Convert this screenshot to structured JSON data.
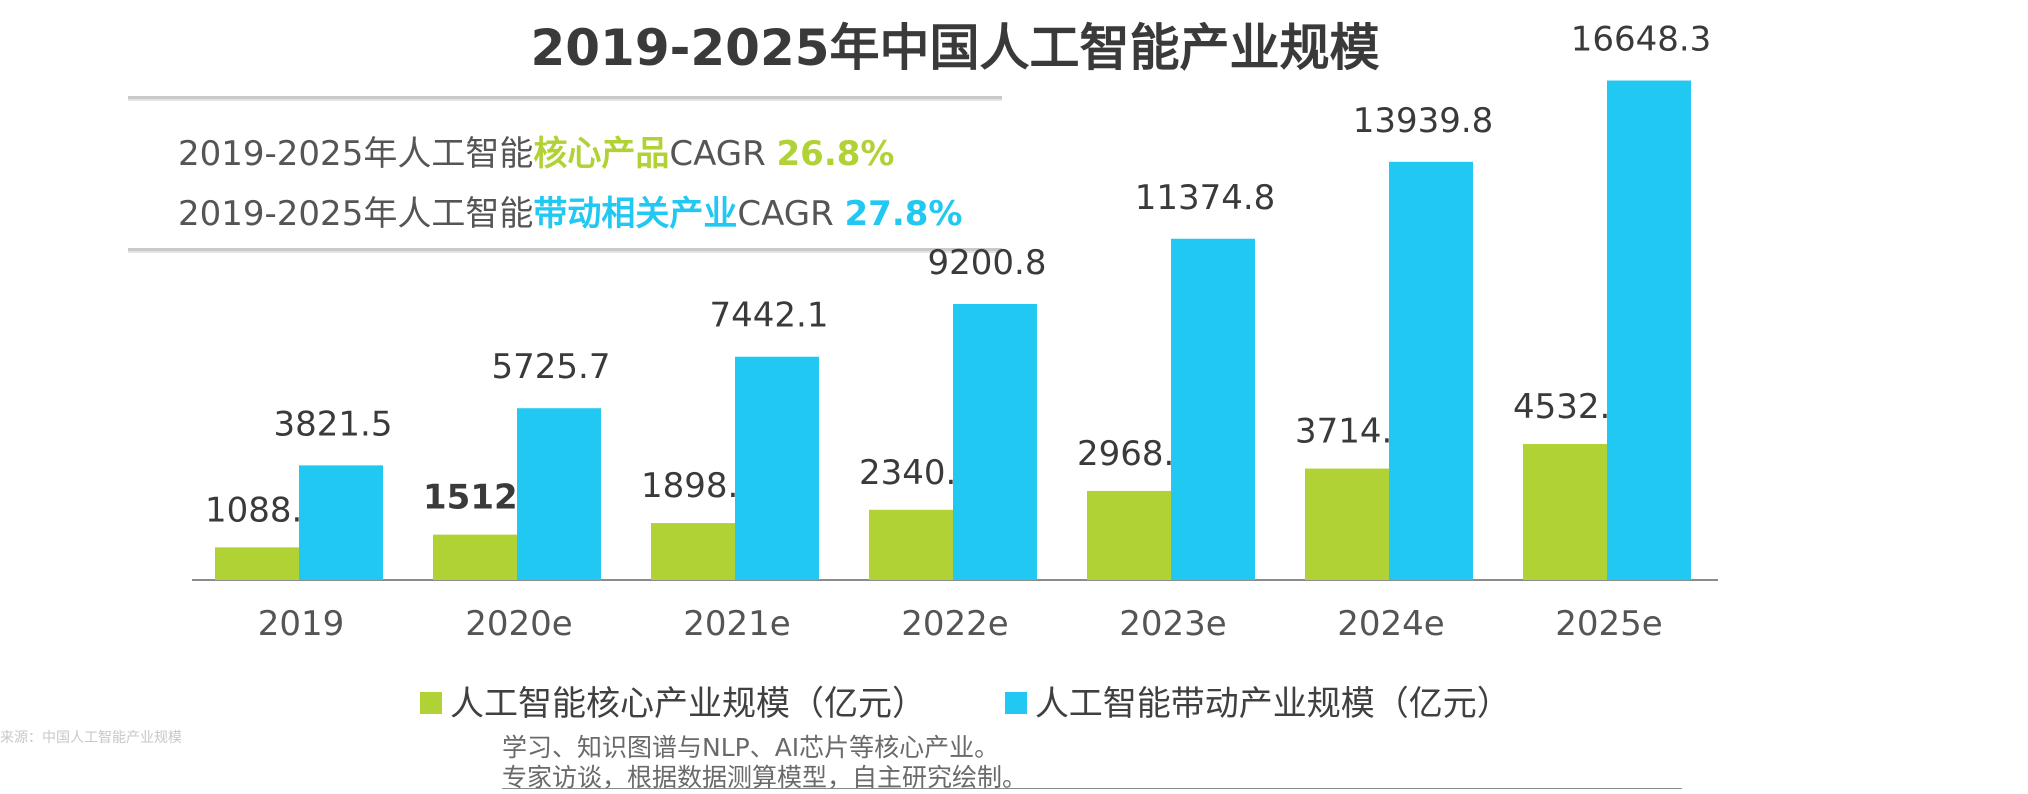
{
  "title": "2019-2025年中国人工智能产业规模",
  "cagr": {
    "line1_prefix": "2019-2025年人工智能",
    "line1_highlight": "核心产品",
    "line1_suffix": "CAGR ",
    "line1_value": "26.8%",
    "line2_prefix": "2019-2025年人工智能",
    "line2_highlight": "带动相关产业",
    "line2_suffix": "CAGR ",
    "line2_value": "27.8%"
  },
  "colors": {
    "green": "#b1d235",
    "cyan": "#21c8f1",
    "axis": "#8c8c8c",
    "label": "#3a3a3a"
  },
  "chart_data": {
    "type": "bar",
    "categories": [
      "2019",
      "2020e",
      "2021e",
      "2022e",
      "2023e",
      "2024e",
      "2025e"
    ],
    "series": [
      {
        "name": "人工智能核心产业规模（亿元）",
        "values": [
          1088.6,
          1512.5,
          1898.1,
          2340.4,
          2968.9,
          3714.6,
          4532.6
        ]
      },
      {
        "name": "人工智能带动产业规模（亿元）",
        "values": [
          3821.5,
          5725.7,
          7442.1,
          9200.8,
          11374.8,
          13939.8,
          16648.3
        ]
      }
    ],
    "value_labels": [
      [
        "1088.6",
        "1512.5",
        "1898.1",
        "2340.4",
        "2968.9",
        "3714.6",
        "4532.6"
      ],
      [
        "3821.5",
        "5725.7",
        "7442.1",
        "9200.8",
        "11374.8",
        "13939.8",
        "16648.3"
      ]
    ],
    "ylim": [
      0,
      17000
    ],
    "grid": false,
    "legend_position": "bottom"
  },
  "notes": {
    "line1": "学习、知识图谱与NLP、AI芯片等核心产业。",
    "line2": "专家访谈，根据数据测算模型，自主研究绘制。"
  },
  "faint_text": "来源：中国人工智能产业规模"
}
